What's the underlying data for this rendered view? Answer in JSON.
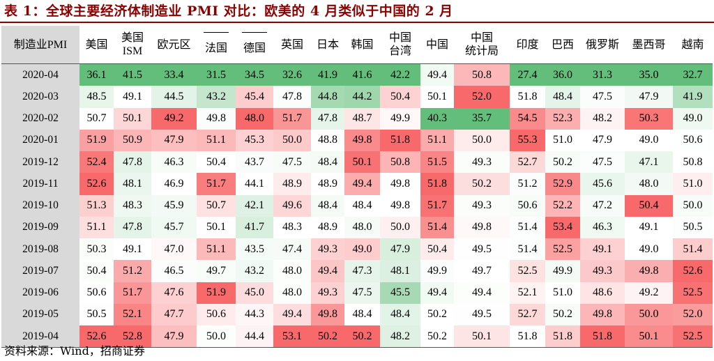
{
  "title": "表 1：全球主要经济体制造业 PMI 对比：欧美的 4 月类似于中国的 2 月",
  "table": {
    "row_header_label": "制造业PMI",
    "columns": [
      {
        "line1": "美国",
        "line2": ""
      },
      {
        "line1": "美国",
        "line2": "ISM"
      },
      {
        "line1": "欧元区",
        "line2": ""
      },
      {
        "line1": "——",
        "line2": "法国"
      },
      {
        "line1": "——",
        "line2": "德国"
      },
      {
        "line1": "英国",
        "line2": ""
      },
      {
        "line1": "日本",
        "line2": ""
      },
      {
        "line1": "韩国",
        "line2": ""
      },
      {
        "line1": "中国",
        "line2": "台湾"
      },
      {
        "line1": "中国",
        "line2": ""
      },
      {
        "line1": "中国",
        "line2": "统计局"
      },
      {
        "line1": "印度",
        "line2": ""
      },
      {
        "line1": "巴西",
        "line2": ""
      },
      {
        "line1": "俄罗斯",
        "line2": ""
      },
      {
        "line1": "墨西哥",
        "line2": ""
      },
      {
        "line1": "越南",
        "line2": ""
      }
    ],
    "rows": [
      {
        "date": "2020-04",
        "values": [
          "36.1",
          "41.5",
          "33.4",
          "31.5",
          "34.5",
          "32.6",
          "41.9",
          "41.6",
          "42.2",
          "49.4",
          "50.8",
          "27.4",
          "36.0",
          "31.3",
          "35.0",
          "32.7"
        ]
      },
      {
        "date": "2020-03",
        "values": [
          "48.5",
          "49.1",
          "44.5",
          "43.2",
          "45.4",
          "47.8",
          "44.8",
          "44.2",
          "50.4",
          "50.1",
          "52.0",
          "51.8",
          "48.4",
          "47.5",
          "47.9",
          "41.9"
        ]
      },
      {
        "date": "2020-02",
        "values": [
          "50.7",
          "50.1",
          "49.2",
          "49.8",
          "48.0",
          "51.7",
          "47.8",
          "48.7",
          "49.9",
          "40.3",
          "35.7",
          "54.5",
          "52.3",
          "48.2",
          "50.3",
          "49.0"
        ]
      },
      {
        "date": "2020-01",
        "values": [
          "51.9",
          "50.9",
          "47.9",
          "51.1",
          "45.3",
          "50.0",
          "48.8",
          "49.8",
          "51.8",
          "51.1",
          "50.0",
          "55.3",
          "51.0",
          "47.9",
          "49.0",
          "50.6"
        ]
      },
      {
        "date": "2019-12",
        "values": [
          "52.4",
          "47.8",
          "46.3",
          "50.4",
          "43.7",
          "47.5",
          "48.4",
          "50.1",
          "50.8",
          "51.5",
          "49.3",
          "52.7",
          "50.2",
          "47.5",
          "47.1",
          "50.8"
        ]
      },
      {
        "date": "2019-11",
        "values": [
          "52.6",
          "48.1",
          "46.9",
          "51.7",
          "44.1",
          "48.9",
          "48.9",
          "49.4",
          "49.8",
          "51.8",
          "50.2",
          "51.2",
          "52.9",
          "45.6",
          "48.0",
          "51.0"
        ]
      },
      {
        "date": "2019-10",
        "values": [
          "51.3",
          "48.3",
          "45.9",
          "50.7",
          "42.1",
          "49.6",
          "48.4",
          "48.4",
          "49.8",
          "51.7",
          "49.3",
          "50.6",
          "52.2",
          "47.2",
          "50.4",
          "50.0"
        ]
      },
      {
        "date": "2019-09",
        "values": [
          "51.1",
          "47.8",
          "45.7",
          "50.1",
          "41.7",
          "48.3",
          "48.9",
          "48.0",
          "50.0",
          "51.4",
          "49.8",
          "51.4",
          "53.4",
          "46.3",
          "49.1",
          "50.5"
        ]
      },
      {
        "date": "2019-08",
        "values": [
          "50.3",
          "49.1",
          "47.0",
          "51.1",
          "43.5",
          "47.4",
          "49.3",
          "49.0",
          "47.9",
          "50.4",
          "49.5",
          "51.4",
          "52.5",
          "49.1",
          "49.0",
          "51.4"
        ]
      },
      {
        "date": "2019-07",
        "values": [
          "50.4",
          "51.2",
          "46.5",
          "49.7",
          "43.2",
          "48.0",
          "49.4",
          "47.3",
          "48.1",
          "49.9",
          "49.7",
          "52.5",
          "49.9",
          "49.3",
          "49.8",
          "52.6"
        ]
      },
      {
        "date": "2019-06",
        "values": [
          "50.6",
          "51.7",
          "47.6",
          "51.9",
          "45.0",
          "48.0",
          "49.3",
          "47.5",
          "45.5",
          "49.4",
          "49.4",
          "52.1",
          "51.0",
          "48.6",
          "49.2",
          "52.5"
        ]
      },
      {
        "date": "2019-05",
        "values": [
          "50.5",
          "52.1",
          "47.7",
          "50.6",
          "44.3",
          "49.4",
          "49.8",
          "48.4",
          "48.4",
          "50.2",
          "49.5",
          "52.7",
          "50.2",
          "49.8",
          "50.0",
          "52.0"
        ]
      },
      {
        "date": "2019-04",
        "values": [
          "52.6",
          "52.8",
          "47.9",
          "50.0",
          "44.4",
          "53.1",
          "50.2",
          "50.2",
          "48.2",
          "50.2",
          "50.1",
          "51.8",
          "51.8",
          "51.8",
          "50.1",
          "52.5"
        ]
      }
    ],
    "heat_colors": {
      "low": "#63be7b",
      "mid": "#ffffff",
      "high": "#f8696b"
    }
  },
  "source": "资料来源：Wind，招商证券"
}
